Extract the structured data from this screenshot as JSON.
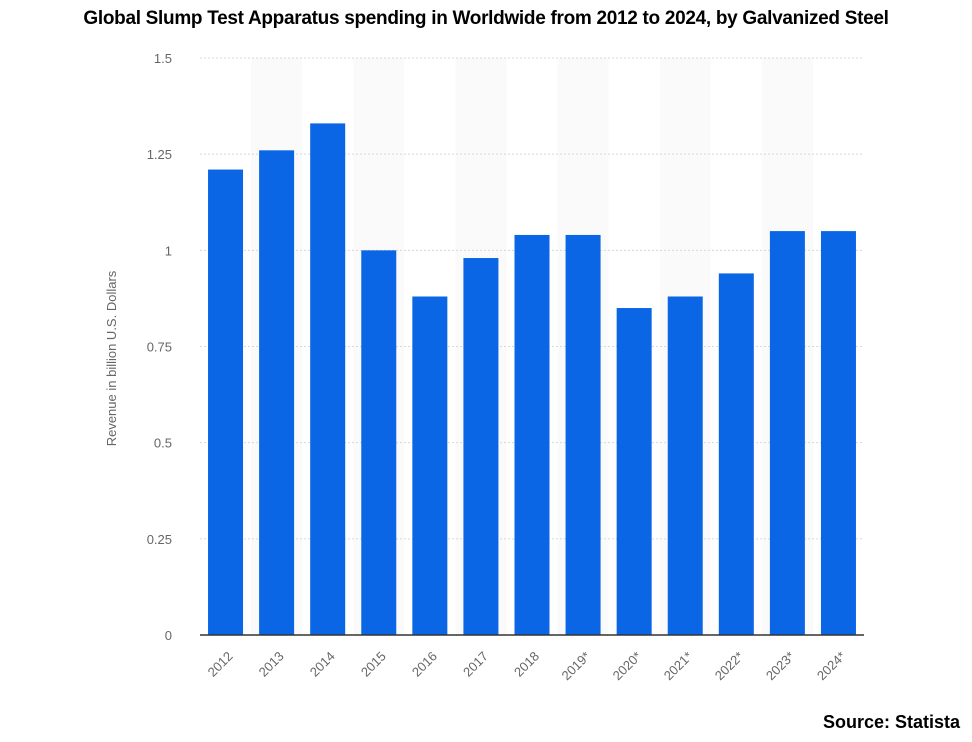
{
  "chart_data": {
    "type": "bar",
    "title": "Global Slump Test Apparatus spending in Worldwide from 2012 to 2024, by Galvanized Steel",
    "xlabel": "",
    "ylabel": "Revenue in billion U.S. Dollars",
    "ylim": [
      0,
      1.5
    ],
    "yticks": [
      "0",
      "0.25",
      "0.5",
      "0.75",
      "1",
      "1.25",
      "1.5"
    ],
    "categories": [
      "2012",
      "2013",
      "2014",
      "2015",
      "2016",
      "2017",
      "2018",
      "2019*",
      "2020*",
      "2021*",
      "2022*",
      "2023*",
      "2024*"
    ],
    "values": [
      1.21,
      1.26,
      1.33,
      1.0,
      0.88,
      0.98,
      1.04,
      1.04,
      0.85,
      0.88,
      0.94,
      1.05,
      1.05
    ],
    "bar_color": "#0a66e4",
    "grid": true,
    "source": "Source: Statista"
  }
}
